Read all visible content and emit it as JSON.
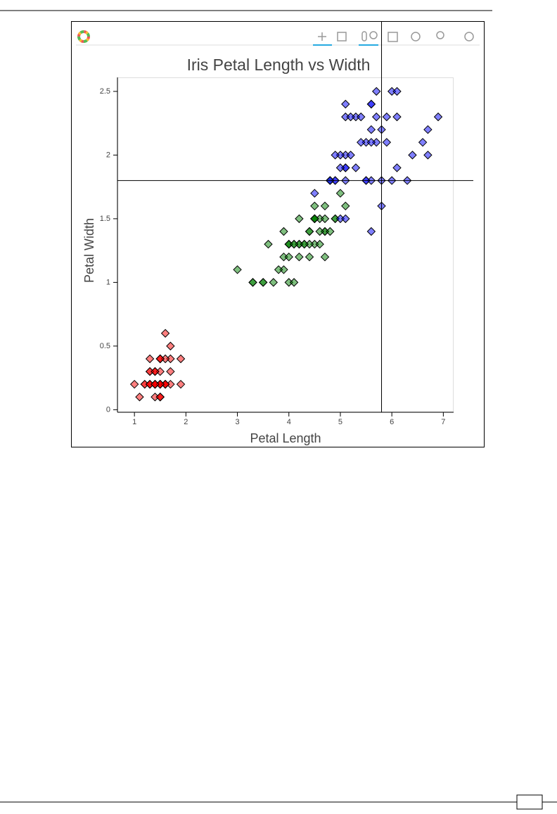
{
  "chart_data": {
    "type": "scatter",
    "title": "Iris Petal Length vs Width",
    "x_label": "Petal Length",
    "y_label": "Petal Width",
    "xlim": [
      0.67,
      7.2
    ],
    "ylim": [
      -0.02,
      2.61
    ],
    "xticks": [
      1,
      2,
      3,
      4,
      5,
      6,
      7
    ],
    "yticks": [
      0,
      0.5,
      1,
      1.5,
      2,
      2.5
    ],
    "grid": false,
    "crosshair": {
      "x": 5.8,
      "y": 1.8
    },
    "series": [
      {
        "color": "red",
        "x": [
          1.4,
          1.4,
          1.3,
          1.5,
          1.4,
          1.7,
          1.4,
          1.5,
          1.4,
          1.5,
          1.5,
          1.6,
          1.4,
          1.1,
          1.2,
          1.5,
          1.3,
          1.4,
          1.7,
          1.5,
          1.7,
          1.5,
          1.0,
          1.7,
          1.9,
          1.6,
          1.6,
          1.5,
          1.4,
          1.6,
          1.6,
          1.5,
          1.5,
          1.4,
          1.5,
          1.2,
          1.3,
          1.5,
          1.3,
          1.5,
          1.3,
          1.3,
          1.3,
          1.6,
          1.9,
          1.4,
          1.6,
          1.4,
          1.5,
          1.4
        ],
        "values": [
          0.2,
          0.2,
          0.2,
          0.2,
          0.2,
          0.4,
          0.3,
          0.2,
          0.2,
          0.1,
          0.2,
          0.2,
          0.1,
          0.1,
          0.2,
          0.4,
          0.4,
          0.3,
          0.3,
          0.3,
          0.2,
          0.4,
          0.2,
          0.5,
          0.2,
          0.2,
          0.4,
          0.2,
          0.2,
          0.2,
          0.2,
          0.4,
          0.1,
          0.2,
          0.2,
          0.2,
          0.2,
          0.1,
          0.2,
          0.2,
          0.3,
          0.3,
          0.2,
          0.6,
          0.4,
          0.3,
          0.2,
          0.2,
          0.2,
          0.2
        ]
      },
      {
        "color": "green",
        "x": [
          4.7,
          4.5,
          4.9,
          4.0,
          4.6,
          4.5,
          4.7,
          3.3,
          4.6,
          3.9,
          3.5,
          4.2,
          4.0,
          4.7,
          3.6,
          4.4,
          4.5,
          4.1,
          4.5,
          3.9,
          4.8,
          4.0,
          4.9,
          4.7,
          4.3,
          4.4,
          4.8,
          5.0,
          4.5,
          3.5,
          3.8,
          3.7,
          3.9,
          5.1,
          4.5,
          4.5,
          4.7,
          4.4,
          4.1,
          4.0,
          4.4,
          4.6,
          4.0,
          3.3,
          4.2,
          4.2,
          4.2,
          4.3,
          3.0,
          4.1
        ],
        "values": [
          1.4,
          1.5,
          1.5,
          1.3,
          1.5,
          1.3,
          1.6,
          1.0,
          1.3,
          1.4,
          1.0,
          1.5,
          1.0,
          1.4,
          1.3,
          1.4,
          1.5,
          1.0,
          1.5,
          1.1,
          1.8,
          1.3,
          1.5,
          1.2,
          1.3,
          1.4,
          1.4,
          1.7,
          1.5,
          1.0,
          1.1,
          1.0,
          1.2,
          1.6,
          1.5,
          1.6,
          1.5,
          1.3,
          1.3,
          1.3,
          1.2,
          1.4,
          1.2,
          1.0,
          1.3,
          1.2,
          1.3,
          1.3,
          1.1,
          1.3
        ]
      },
      {
        "color": "blue",
        "x": [
          6.0,
          5.1,
          5.9,
          5.6,
          5.8,
          6.6,
          4.5,
          6.3,
          5.8,
          6.1,
          5.1,
          5.3,
          5.5,
          5.0,
          5.1,
          5.3,
          5.5,
          6.7,
          6.9,
          5.0,
          5.7,
          4.9,
          6.7,
          4.9,
          5.7,
          6.0,
          4.8,
          4.9,
          5.6,
          5.8,
          6.1,
          6.4,
          5.6,
          5.1,
          5.6,
          6.1,
          5.6,
          5.5,
          4.8,
          5.4,
          5.6,
          5.1,
          5.1,
          5.9,
          5.7,
          5.2,
          5.0,
          5.2,
          5.4,
          5.1
        ],
        "values": [
          2.5,
          1.9,
          2.1,
          1.8,
          2.2,
          2.1,
          1.7,
          1.8,
          1.8,
          2.5,
          2.0,
          1.9,
          2.1,
          2.0,
          2.4,
          2.3,
          1.8,
          2.2,
          2.3,
          1.5,
          2.3,
          2.0,
          2.0,
          1.8,
          2.1,
          1.8,
          1.8,
          1.8,
          2.1,
          1.6,
          1.9,
          2.0,
          2.2,
          1.5,
          1.4,
          2.3,
          2.4,
          1.8,
          1.8,
          2.1,
          2.4,
          2.3,
          1.9,
          2.3,
          2.5,
          2.3,
          1.9,
          2.0,
          2.3,
          1.8
        ]
      }
    ]
  }
}
